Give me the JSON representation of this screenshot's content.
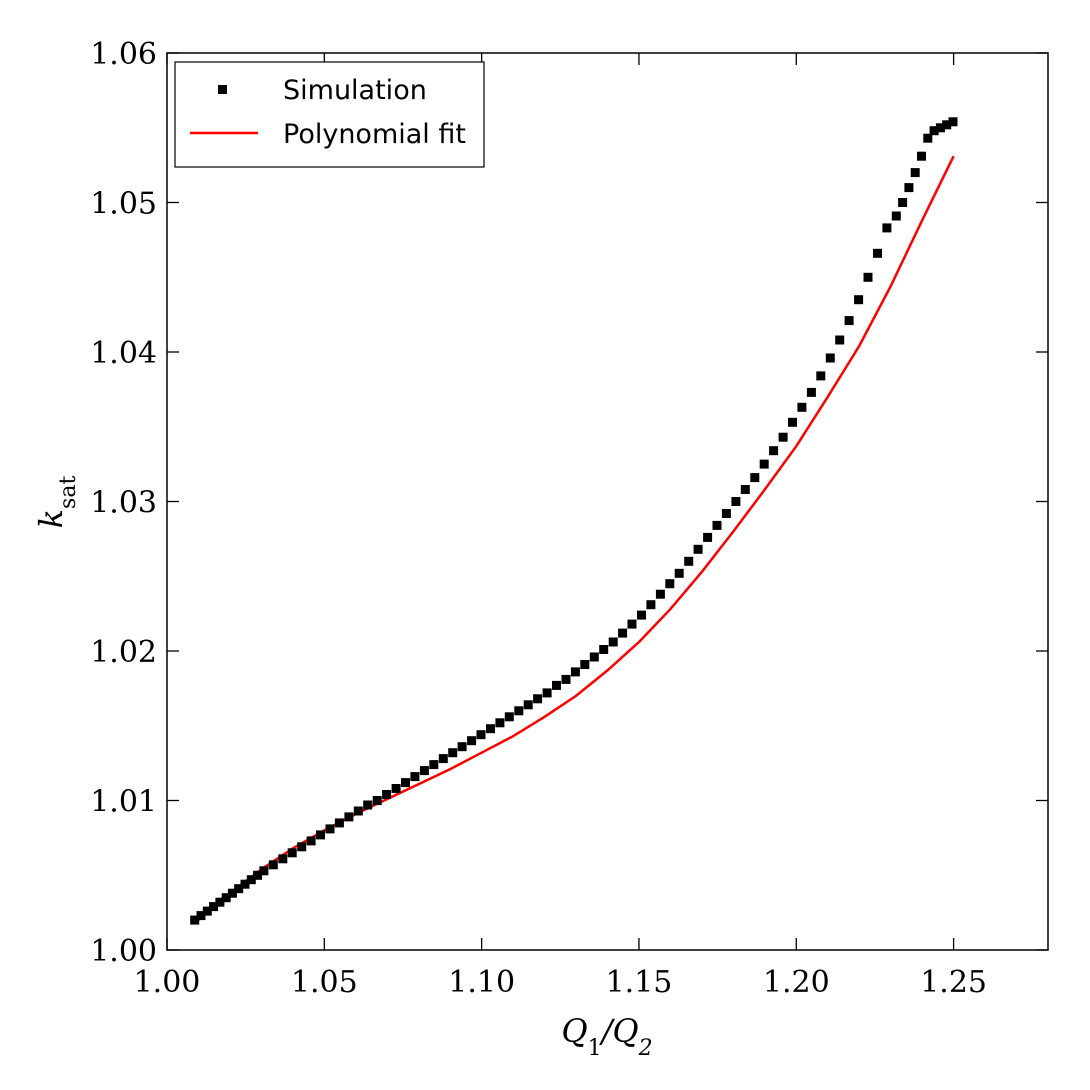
{
  "chart_data": {
    "type": "scatter",
    "xlabel": "Q1/Q2",
    "ylabel": "ksat",
    "xlim": [
      1.0,
      1.28
    ],
    "ylim": [
      1.0,
      1.06
    ],
    "x_ticks": [
      "1.00",
      "1.05",
      "1.10",
      "1.15",
      "1.20",
      "1.25"
    ],
    "y_ticks": [
      "1.00",
      "1.01",
      "1.02",
      "1.03",
      "1.04",
      "1.05",
      "1.06"
    ],
    "grid": false,
    "legend_position": "top-left",
    "colors": {
      "simulation": "#000000",
      "fit": "#ff0000"
    },
    "series": [
      {
        "name": "Simulation",
        "kind": "markers",
        "x": [
          1.0088,
          1.0108,
          1.0128,
          1.0148,
          1.0168,
          1.0188,
          1.0208,
          1.0228,
          1.0248,
          1.0268,
          1.0288,
          1.0308,
          1.0338,
          1.0368,
          1.0398,
          1.0428,
          1.0458,
          1.0488,
          1.0518,
          1.0548,
          1.0578,
          1.0608,
          1.0638,
          1.0668,
          1.0698,
          1.0728,
          1.0758,
          1.0788,
          1.0818,
          1.0848,
          1.0878,
          1.0908,
          1.0938,
          1.0968,
          1.0998,
          1.1028,
          1.1058,
          1.1088,
          1.1118,
          1.1148,
          1.1178,
          1.1208,
          1.1238,
          1.1268,
          1.1298,
          1.1328,
          1.1358,
          1.1388,
          1.1418,
          1.1448,
          1.1478,
          1.1508,
          1.1538,
          1.1568,
          1.1598,
          1.1628,
          1.1658,
          1.1688,
          1.1718,
          1.1748,
          1.1778,
          1.1808,
          1.1838,
          1.1868,
          1.1898,
          1.1928,
          1.1958,
          1.1988,
          1.2018,
          1.2048,
          1.2078,
          1.2108,
          1.2138,
          1.2168,
          1.2198,
          1.2228,
          1.2258,
          1.2288,
          1.2318,
          1.2338,
          1.2358,
          1.2378,
          1.2398,
          1.2418,
          1.2438,
          1.2458,
          1.2478,
          1.2498
        ],
        "y": [
          1.002,
          1.0023,
          1.0026,
          1.0029,
          1.0032,
          1.0035,
          1.0038,
          1.0041,
          1.0044,
          1.0047,
          1.005,
          1.0053,
          1.0057,
          1.0061,
          1.0065,
          1.0069,
          1.0073,
          1.0077,
          1.0081,
          1.0085,
          1.0089,
          1.0093,
          1.0097,
          1.01,
          1.0104,
          1.0108,
          1.0112,
          1.0116,
          1.012,
          1.0124,
          1.0128,
          1.0132,
          1.0136,
          1.014,
          1.0144,
          1.0148,
          1.0152,
          1.0156,
          1.016,
          1.0164,
          1.0168,
          1.0172,
          1.0177,
          1.0181,
          1.0186,
          1.0191,
          1.0196,
          1.0201,
          1.0206,
          1.0212,
          1.0218,
          1.0224,
          1.0231,
          1.0238,
          1.0245,
          1.0252,
          1.026,
          1.0268,
          1.0276,
          1.0284,
          1.0292,
          1.03,
          1.0308,
          1.0316,
          1.0325,
          1.0334,
          1.0343,
          1.0353,
          1.0363,
          1.0373,
          1.0384,
          1.0396,
          1.0408,
          1.0421,
          1.0435,
          1.045,
          1.0466,
          1.0483,
          1.0491,
          1.05,
          1.051,
          1.052,
          1.0531,
          1.0543,
          1.0548,
          1.055,
          1.0552,
          1.0554
        ]
      },
      {
        "name": "Polynomial fit",
        "kind": "line",
        "x": [
          1.0088,
          1.02,
          1.03,
          1.04,
          1.05,
          1.06,
          1.07,
          1.08,
          1.09,
          1.1,
          1.11,
          1.12,
          1.13,
          1.14,
          1.15,
          1.16,
          1.17,
          1.18,
          1.19,
          1.2,
          1.21,
          1.22,
          1.23,
          1.24,
          1.25
        ],
        "y": [
          1.0018,
          1.0038,
          1.0054,
          1.0068,
          1.008,
          1.0091,
          1.0101,
          1.0111,
          1.0121,
          1.0132,
          1.0143,
          1.0156,
          1.017,
          1.0187,
          1.0206,
          1.0228,
          1.0253,
          1.028,
          1.0308,
          1.0337,
          1.037,
          1.0404,
          1.0444,
          1.0488,
          1.0531
        ]
      }
    ]
  }
}
